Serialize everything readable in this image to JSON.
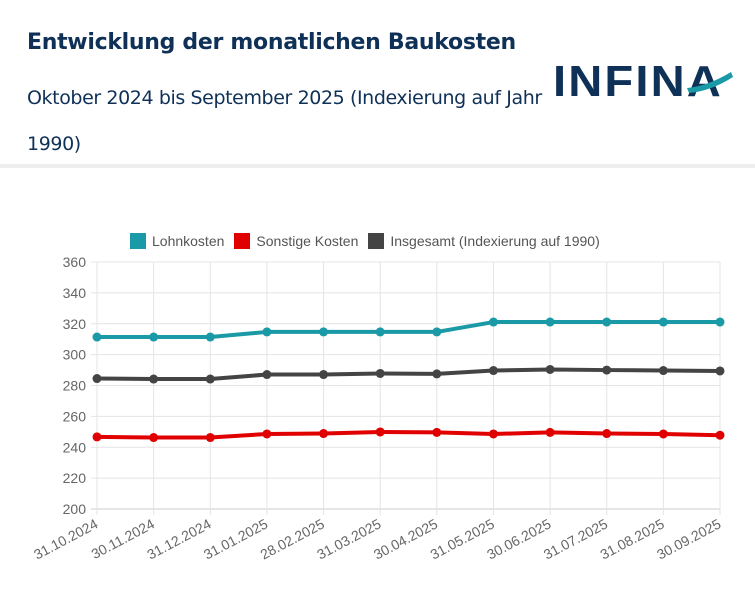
{
  "header": {
    "title": "Entwicklung der monatlichen Baukosten",
    "subtitle": "Oktober 2024 bis September 2025 (Indexierung auf Jahr 1990)",
    "logo_text": "INFINA",
    "logo_icon": "infina-logo-swoosh",
    "title_color": "#0f3057",
    "logo_accent_color": "#1a9aa6"
  },
  "chart_data": {
    "type": "line",
    "title": "",
    "xlabel": "",
    "ylabel": "",
    "ylim": [
      200,
      360
    ],
    "yticks": [
      200,
      220,
      240,
      260,
      280,
      300,
      320,
      340,
      360
    ],
    "grid": true,
    "legend_position": "top",
    "categories": [
      "31.10.2024",
      "30.11.2024",
      "31.12.2024",
      "31.01.2025",
      "28.02.2025",
      "31.03.2025",
      "30.04.2025",
      "31.05.2025",
      "30.06.2025",
      "31.07.2025",
      "31.08.2025",
      "30.09.2025"
    ],
    "series": [
      {
        "name": "Lohnkosten",
        "color": "#1a9aa6",
        "values": [
          311.4,
          311.4,
          311.4,
          314.7,
          314.7,
          314.7,
          314.7,
          321.1,
          321.1,
          321.1,
          321.1,
          321.1
        ]
      },
      {
        "name": "Sonstige Kosten",
        "color": "#e00000",
        "values": [
          246.7,
          246.3,
          246.3,
          248.6,
          248.9,
          249.9,
          249.6,
          248.6,
          249.6,
          248.9,
          248.6,
          247.8
        ]
      },
      {
        "name": "Insgesamt (Indexierung auf 1990)",
        "color": "#444444",
        "values": [
          284.5,
          284.2,
          284.2,
          287.1,
          287.1,
          287.8,
          287.5,
          289.7,
          290.4,
          290.0,
          289.7,
          289.4
        ]
      }
    ]
  }
}
